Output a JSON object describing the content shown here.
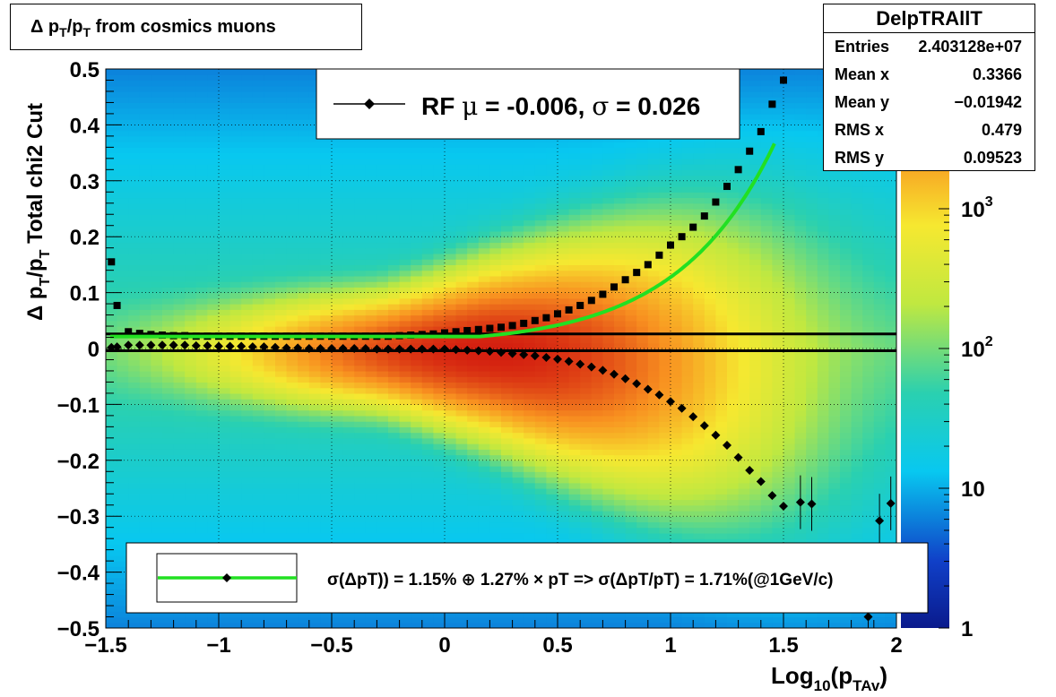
{
  "title": "Δ p_T/p_T from cosmics muons",
  "title_parts": {
    "a": "Δ p",
    "b": "T",
    "c": "/p",
    "d": "T",
    "e": " from cosmics muons"
  },
  "stats": {
    "name": "DelpTRAllT",
    "rows": [
      {
        "key": "Entries",
        "value": "2.403128e+07"
      },
      {
        "key": "Mean x",
        "value": "0.3366"
      },
      {
        "key": "Mean y",
        "value": "−0.01942"
      },
      {
        "key": "RMS x",
        "value": "0.479"
      },
      {
        "key": "RMS y",
        "value": "0.09523"
      }
    ]
  },
  "legend_top": {
    "prefix": "RF ",
    "mu": "μ",
    "mid": " = -0.006, ",
    "sigma": "σ",
    "rest": " =   0.026"
  },
  "legend_bottom": {
    "text": "σ(ΔpT)) =  1.15% ⊕  1.27% × pT => σ(ΔpT/pT) =  1.71%(@1GeV/c)"
  },
  "colors": {
    "fit_line": "#22e022",
    "marker": "#000000"
  },
  "chart_data": {
    "type": "heatmap",
    "title": "Δ p_T/p_T from cosmics muons",
    "xlabel": "Log10(pTAv)",
    "ylabel": "Δ p_T/p_T  Total chi2 Cut",
    "xlim": [
      -1.5,
      2.0
    ],
    "ylim": [
      -0.5,
      0.5
    ],
    "z_scale": "log",
    "zlim": [
      1,
      10000
    ],
    "x_ticks": [
      "−1.5",
      "−1",
      "−0.5",
      "0",
      "0.5",
      "1",
      "1.5",
      "2"
    ],
    "y_ticks": [
      "−0.5",
      "−0.4",
      "−0.3",
      "−0.2",
      "−0.1",
      "0",
      "0.1",
      "0.2",
      "0.3",
      "0.4",
      "0.5"
    ],
    "z_ticks": [
      "1",
      "10",
      "10^2",
      "10^3"
    ],
    "grid": true,
    "series": [
      {
        "kind": "markers_sigma",
        "x": [
          -1.475,
          -1.45,
          -1.4,
          -1.35,
          -1.3,
          -1.25,
          -1.2,
          -1.15,
          -1.1,
          -1.05,
          -1.0,
          -0.95,
          -0.9,
          -0.85,
          -0.8,
          -0.75,
          -0.7,
          -0.65,
          -0.6,
          -0.55,
          -0.5,
          -0.45,
          -0.4,
          -0.35,
          -0.3,
          -0.25,
          -0.2,
          -0.15,
          -0.1,
          -0.05,
          0.0,
          0.05,
          0.1,
          0.15,
          0.2,
          0.25,
          0.3,
          0.35,
          0.4,
          0.45,
          0.5,
          0.55,
          0.6,
          0.65,
          0.7,
          0.75,
          0.8,
          0.85,
          0.9,
          0.95,
          1.0,
          1.05,
          1.1,
          1.15,
          1.2,
          1.25,
          1.3,
          1.35,
          1.4,
          1.45,
          1.5
        ],
        "y": [
          0.155,
          0.077,
          0.03,
          0.027,
          0.025,
          0.024,
          0.023,
          0.023,
          0.022,
          0.022,
          0.022,
          0.022,
          0.022,
          0.022,
          0.022,
          0.022,
          0.022,
          0.022,
          0.022,
          0.022,
          0.022,
          0.022,
          0.022,
          0.022,
          0.022,
          0.022,
          0.023,
          0.024,
          0.025,
          0.026,
          0.028,
          0.03,
          0.032,
          0.034,
          0.036,
          0.038,
          0.041,
          0.045,
          0.05,
          0.055,
          0.062,
          0.069,
          0.077,
          0.086,
          0.097,
          0.11,
          0.123,
          0.136,
          0.15,
          0.167,
          0.185,
          0.2,
          0.217,
          0.237,
          0.262,
          0.29,
          0.32,
          0.353,
          0.388,
          0.437,
          0.48
        ]
      },
      {
        "kind": "markers_mean",
        "x": [
          -1.475,
          -1.45,
          -1.4,
          -1.35,
          -1.3,
          -1.25,
          -1.2,
          -1.15,
          -1.1,
          -1.05,
          -1.0,
          -0.95,
          -0.9,
          -0.85,
          -0.8,
          -0.75,
          -0.7,
          -0.65,
          -0.6,
          -0.55,
          -0.5,
          -0.45,
          -0.4,
          -0.35,
          -0.3,
          -0.25,
          -0.2,
          -0.15,
          -0.1,
          -0.05,
          0.0,
          0.05,
          0.1,
          0.15,
          0.2,
          0.25,
          0.3,
          0.35,
          0.4,
          0.45,
          0.5,
          0.55,
          0.6,
          0.65,
          0.7,
          0.75,
          0.8,
          0.85,
          0.9,
          0.95,
          1.0,
          1.05,
          1.1,
          1.15,
          1.2,
          1.25,
          1.3,
          1.35,
          1.4,
          1.45,
          1.5,
          1.575,
          1.625,
          1.875,
          1.925,
          1.975
        ],
        "y": [
          0.002,
          0.003,
          0.006,
          0.006,
          0.006,
          0.006,
          0.006,
          0.006,
          0.005,
          0.005,
          0.004,
          0.004,
          0.004,
          0.003,
          0.003,
          0.002,
          0.001,
          0.001,
          0.0,
          0.0,
          0.0,
          0.0,
          0.0,
          0.0,
          -0.001,
          -0.001,
          -0.001,
          -0.001,
          -0.001,
          -0.001,
          -0.001,
          -0.002,
          -0.003,
          -0.004,
          -0.005,
          -0.007,
          -0.009,
          -0.011,
          -0.013,
          -0.016,
          -0.019,
          -0.023,
          -0.028,
          -0.033,
          -0.039,
          -0.046,
          -0.054,
          -0.063,
          -0.073,
          -0.083,
          -0.095,
          -0.107,
          -0.122,
          -0.138,
          -0.155,
          -0.173,
          -0.195,
          -0.218,
          -0.238,
          -0.263,
          -0.282,
          -0.275,
          -0.278,
          -0.48,
          -0.308,
          -0.277
        ]
      },
      {
        "kind": "fit_curve",
        "name": "σ(ΔpT)) =  1.15% ⊕  1.27% × pT",
        "y0": 0.0215,
        "a": 0.0115,
        "b": 0.0127
      },
      {
        "kind": "hline",
        "y": 0.026
      },
      {
        "kind": "hline",
        "y": -0.004
      }
    ]
  }
}
